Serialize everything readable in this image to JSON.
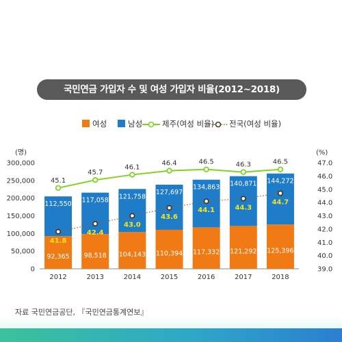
{
  "title": "국민연금 가입자 수 및 여성 가입자 비율(2012~2018)",
  "legend": {
    "female": "여성",
    "male": "남성",
    "jeju": "제주(여성 비율)",
    "national": "전국(여성 비율)"
  },
  "source": "자료 국민연금공단, 『국민연금통계연보』",
  "colors": {
    "female": "#f07a14",
    "male": "#1f7cc8",
    "jeju": "#7ed321",
    "national_line": "#8a6a3a",
    "national_label": "#f5e51a"
  },
  "chart_data": {
    "type": "bar",
    "categories": [
      "2012",
      "2013",
      "2014",
      "2015",
      "2016",
      "2017",
      "2018"
    ],
    "series": [
      {
        "name": "여성",
        "values": [
          92365,
          98518,
          104143,
          110394,
          117332,
          121292,
          125396
        ]
      },
      {
        "name": "남성",
        "values": [
          112550,
          117058,
          121758,
          127697,
          134863,
          140871,
          144272
        ]
      }
    ],
    "line_series": [
      {
        "name": "제주(여성 비율)",
        "values": [
          45.1,
          45.7,
          46.1,
          46.4,
          46.5,
          46.3,
          46.5
        ]
      },
      {
        "name": "전국(여성 비율)",
        "values": [
          41.8,
          42.4,
          43.0,
          43.6,
          44.1,
          44.3,
          44.7
        ]
      }
    ],
    "ylabel_left": "(명)",
    "ylabel_right": "(%)",
    "ylim_left": [
      0,
      300000
    ],
    "yticks_left": [
      "0",
      "50,000",
      "100,000",
      "150,000",
      "200,000",
      "250,000",
      "300,000"
    ],
    "ylim_right": [
      39.0,
      47.0
    ],
    "yticks_right": [
      "39.0",
      "40.0",
      "41.0",
      "42.0",
      "43.0",
      "44.0",
      "45.0",
      "46.0",
      "47.0"
    ],
    "female_labels": [
      "92,365",
      "98,518",
      "104,143",
      "110,394",
      "117,332",
      "121,292",
      "125,396"
    ],
    "male_labels": [
      "112,550",
      "117,058",
      "121,758",
      "127,697",
      "134,863",
      "140,871",
      "144,272"
    ],
    "jeju_labels": [
      "45.1",
      "45.7",
      "46.1",
      "46.4",
      "46.5",
      "46.3",
      "46.5"
    ],
    "national_labels": [
      "41.8",
      "42.4",
      "43.0",
      "43.6",
      "44.1",
      "44.3",
      "44.7"
    ],
    "stacked": true,
    "grid": false
  }
}
